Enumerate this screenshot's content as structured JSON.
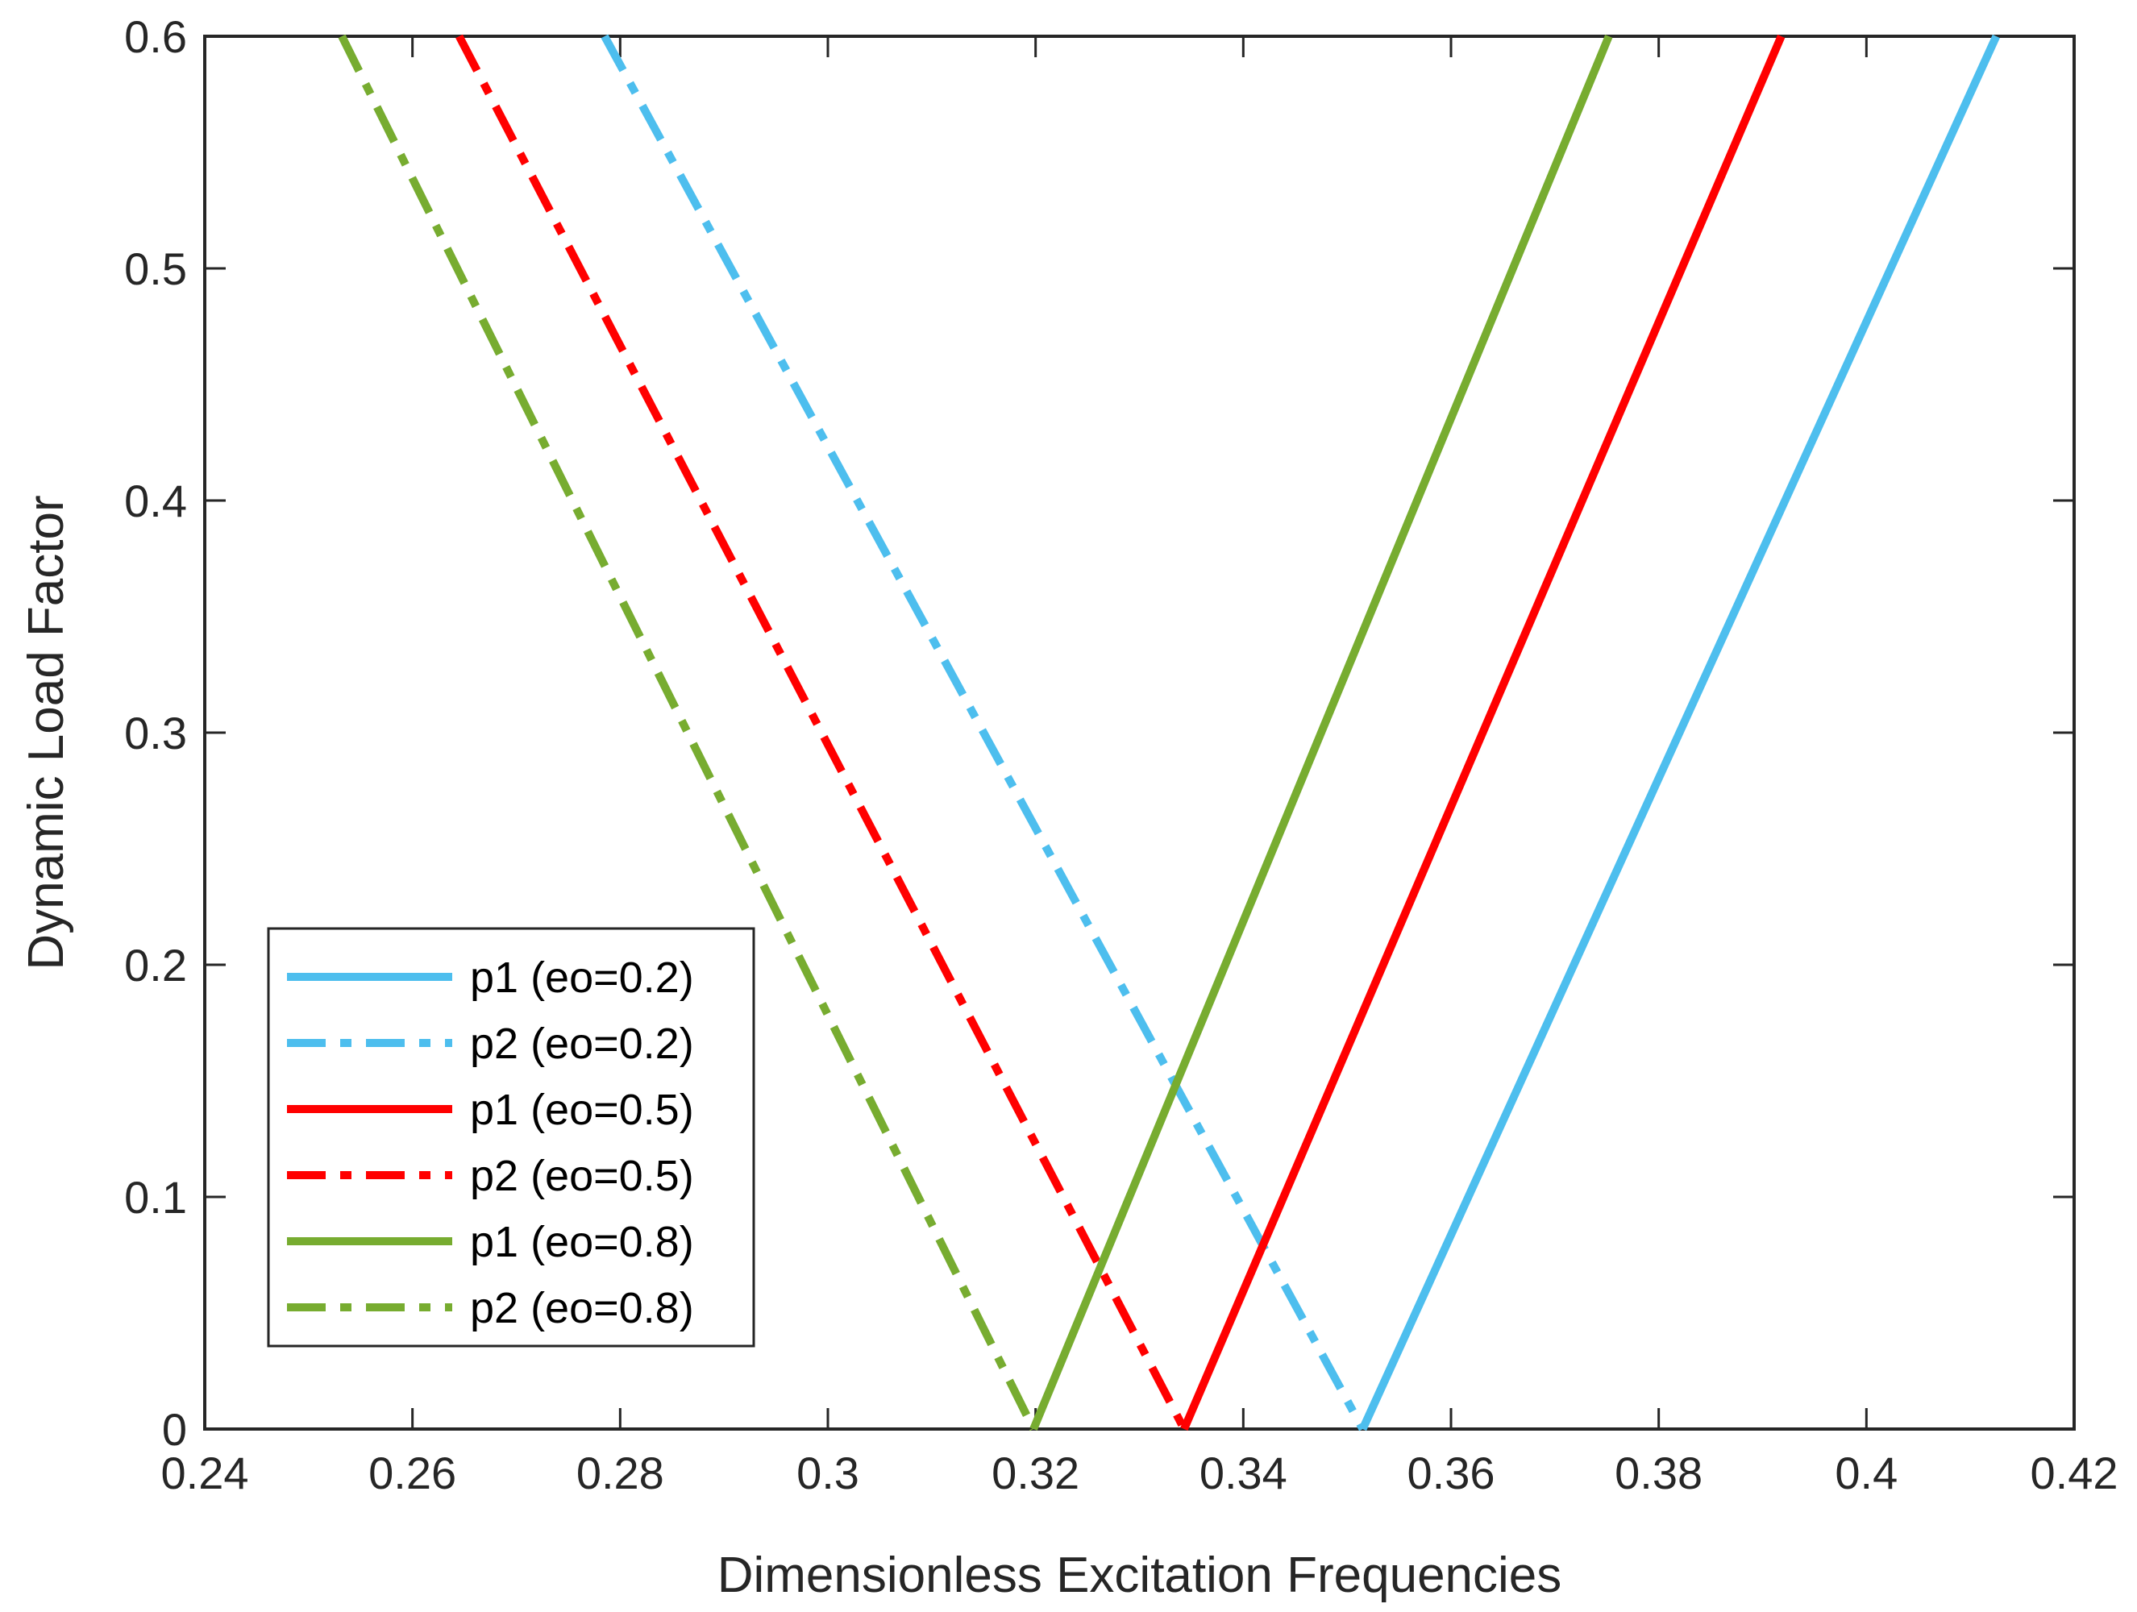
{
  "chart_data": {
    "type": "line",
    "xlabel": "Dimensionless Excitation Frequencies",
    "ylabel": "Dynamic Load Factor",
    "xlim": [
      0.24,
      0.42
    ],
    "ylim": [
      0,
      0.6
    ],
    "xticks": [
      0.24,
      0.26,
      0.28,
      0.3,
      0.32,
      0.34,
      0.36,
      0.38,
      0.4,
      0.42
    ],
    "xtick_labels": [
      "0.24",
      "0.26",
      "0.28",
      "0.3",
      "0.32",
      "0.34",
      "0.36",
      "0.38",
      "0.4",
      "0.42"
    ],
    "yticks": [
      0,
      0.1,
      0.2,
      0.3,
      0.4,
      0.5,
      0.6
    ],
    "ytick_labels": [
      "0",
      "0.1",
      "0.2",
      "0.3",
      "0.4",
      "0.5",
      "0.6"
    ],
    "grid": false,
    "legend_position": "bottom-left",
    "series": [
      {
        "name": "p1 (eo=0.2)",
        "color": "#4dbeee",
        "style": "solid",
        "x": [
          0.3515,
          0.4125
        ],
        "y": [
          0,
          0.6
        ]
      },
      {
        "name": "p2 (eo=0.2)",
        "color": "#4dbeee",
        "style": "dash-dot",
        "x": [
          0.2785,
          0.3515
        ],
        "y": [
          0.6,
          0
        ]
      },
      {
        "name": "p1 (eo=0.5)",
        "color": "#ff0000",
        "style": "solid",
        "x": [
          0.3343,
          0.3918
        ],
        "y": [
          0,
          0.6
        ]
      },
      {
        "name": "p2 (eo=0.5)",
        "color": "#ff0000",
        "style": "dash-dot",
        "x": [
          0.2645,
          0.3343
        ],
        "y": [
          0.6,
          0
        ]
      },
      {
        "name": "p1 (eo=0.8)",
        "color": "#77ac30",
        "style": "solid",
        "x": [
          0.3198,
          0.3752
        ],
        "y": [
          0,
          0.6
        ]
      },
      {
        "name": "p2 (eo=0.8)",
        "color": "#77ac30",
        "style": "dash-dot",
        "x": [
          0.2532,
          0.3198
        ],
        "y": [
          0.6,
          0
        ]
      }
    ]
  }
}
